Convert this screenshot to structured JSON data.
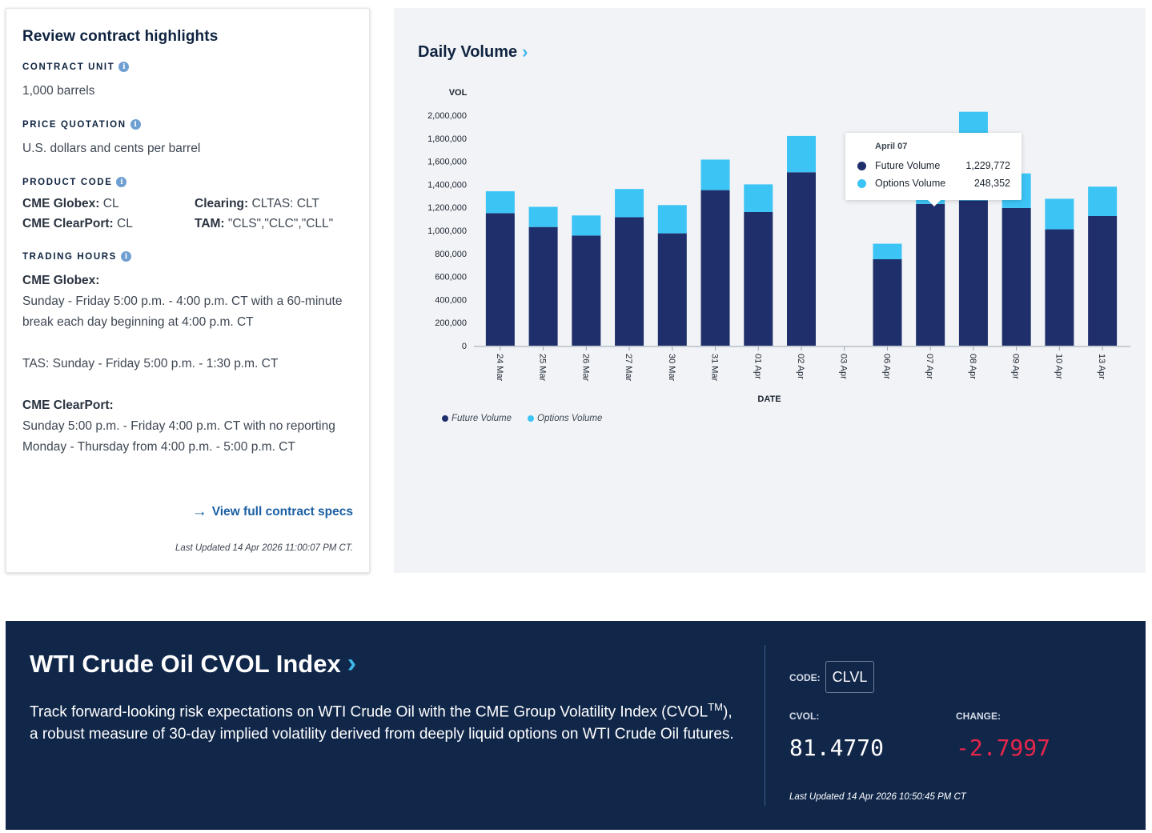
{
  "highlights": {
    "title": "Review contract highlights",
    "contract_unit_label": "CONTRACT UNIT",
    "contract_unit_value": "1,000 barrels",
    "price_quotation_label": "PRICE QUOTATION",
    "price_quotation_value": "U.S. dollars and cents per barrel",
    "product_code_label": "PRODUCT CODE",
    "codes": {
      "globex_label": "CME Globex:",
      "globex_value": "CL",
      "clearing_label": "Clearing:",
      "clearing_value": "CLTAS: CLT",
      "clearport_label": "CME ClearPort:",
      "clearport_value": "CL",
      "tam_label": "TAM:",
      "tam_value": "\"CLS\",\"CLC\",\"CLL\""
    },
    "trading_hours_label": "TRADING HOURS",
    "hours": {
      "globex_title": "CME Globex:",
      "globex_text": "Sunday - Friday 5:00 p.m. - 4:00 p.m. CT with a 60-minute break each day beginning at 4:00 p.m. CT",
      "tas_text": "TAS: Sunday - Friday 5:00 p.m. - 1:30 p.m. CT",
      "clearport_title": "CME ClearPort:",
      "clearport_text": "Sunday 5:00 p.m. - Friday 4:00 p.m. CT with no reporting Monday - Thursday from 4:00 p.m. - 5:00 p.m. CT"
    },
    "view_link": "View full contract specs",
    "last_updated": "Last Updated 14 Apr 2026 11:00:07 PM CT."
  },
  "volume_chart": {
    "title": "Daily Volume",
    "tooltip": {
      "date": "April 07",
      "future_label": "Future Volume",
      "future_value": "1,229,772",
      "options_label": "Options Volume",
      "options_value": "248,352"
    }
  },
  "chart_data": {
    "type": "bar",
    "stacked": true,
    "xlabel": "DATE",
    "ylabel": "VOL",
    "ylim": [
      0,
      2000000
    ],
    "yticks": [
      "0",
      "200,000",
      "400,000",
      "600,000",
      "800,000",
      "1,000,000",
      "1,200,000",
      "1,400,000",
      "1,600,000",
      "1,800,000",
      "2,000,000"
    ],
    "categories": [
      "24 Mar",
      "25 Mar",
      "26 Mar",
      "27 Mar",
      "30 Mar",
      "31 Mar",
      "01 Apr",
      "02 Apr",
      "03 Apr",
      "06 Apr",
      "07 Apr",
      "08 Apr",
      "09 Apr",
      "10 Apr",
      "13 Apr"
    ],
    "series": [
      {
        "name": "Future Volume",
        "color": "#1f2f6b",
        "values": [
          1150000,
          1030000,
          955000,
          1115000,
          975000,
          1350000,
          1160000,
          1505000,
          0,
          750000,
          1229772,
          1260000,
          1195000,
          1010000,
          1125000
        ]
      },
      {
        "name": "Options Volume",
        "color": "#3cc4f5",
        "values": [
          190000,
          175000,
          175000,
          245000,
          245000,
          265000,
          240000,
          315000,
          0,
          135000,
          248352,
          770000,
          300000,
          265000,
          255000
        ]
      }
    ],
    "legend_position": "bottom-left",
    "grid": false
  },
  "cvol": {
    "title": "WTI Crude Oil CVOL Index",
    "desc_before": "Track forward-looking risk expectations on WTI Crude Oil with the CME Group Volatility Index (CVOL",
    "desc_sup": "TM",
    "desc_after": "), a robust measure of 30-day implied volatility derived from deeply liquid options on WTI Crude Oil futures.",
    "code_label": "CODE:",
    "code_value": "CLVL",
    "cvol_label": "CVOL:",
    "cvol_value": "81.4770",
    "change_label": "CHANGE:",
    "change_value": "-2.7997",
    "change_color": "#e8254a",
    "last_updated": "Last Updated 14 Apr 2026 10:50:45 PM CT"
  }
}
